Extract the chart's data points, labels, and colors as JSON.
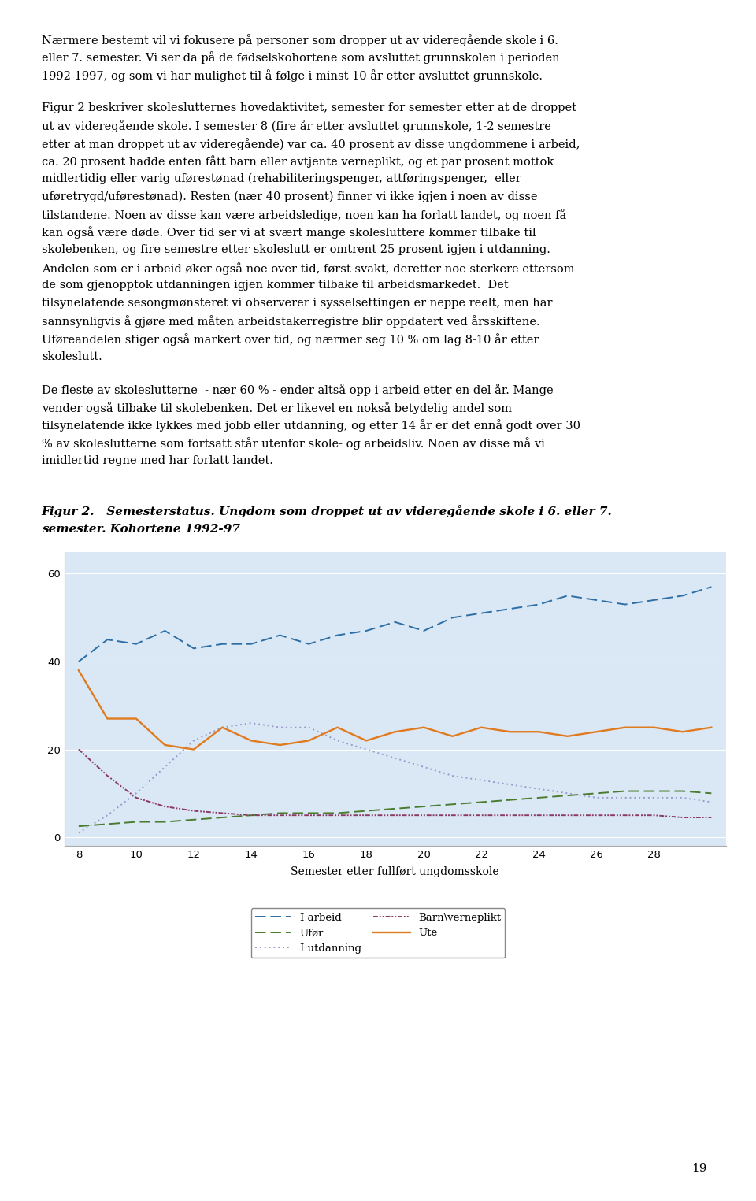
{
  "xlabel": "Semester etter fullført ungdomsskole",
  "xlim": [
    7.5,
    30.5
  ],
  "ylim": [
    -2,
    65
  ],
  "yticks": [
    0,
    20,
    40,
    60
  ],
  "xticks": [
    8,
    10,
    12,
    14,
    16,
    18,
    20,
    22,
    24,
    26,
    28
  ],
  "plot_bg_color": "#dae8f5",
  "x": [
    8,
    9,
    10,
    11,
    12,
    13,
    14,
    15,
    16,
    17,
    18,
    19,
    20,
    21,
    22,
    23,
    24,
    25,
    26,
    27,
    28,
    29,
    30
  ],
  "i_arbeid": [
    40,
    45,
    44,
    47,
    43,
    44,
    44,
    46,
    44,
    46,
    47,
    49,
    47,
    50,
    51,
    52,
    53,
    55,
    54,
    53,
    54,
    55,
    57
  ],
  "ufor": [
    2.5,
    3,
    3.5,
    3.5,
    4,
    4.5,
    5,
    5.5,
    5.5,
    5.5,
    6,
    6.5,
    7,
    7.5,
    8,
    8.5,
    9,
    9.5,
    10,
    10.5,
    10.5,
    10.5,
    10
  ],
  "i_utdanning": [
    1,
    5,
    10,
    16,
    22,
    25,
    26,
    25,
    25,
    22,
    20,
    18,
    16,
    14,
    13,
    12,
    11,
    10,
    9,
    9,
    9,
    9,
    8
  ],
  "barn_verneplikt": [
    20,
    14,
    9,
    7,
    6,
    5.5,
    5,
    5,
    5,
    5,
    5,
    5,
    5,
    5,
    5,
    5,
    5,
    5,
    5,
    5,
    5,
    4.5,
    4.5
  ],
  "ute": [
    38,
    27,
    27,
    21,
    20,
    25,
    22,
    21,
    22,
    25,
    22,
    24,
    25,
    23,
    25,
    24,
    24,
    23,
    24,
    25,
    25,
    24,
    25
  ],
  "color_arbeid": "#2c6ea5",
  "color_ufor": "#4a7c2f",
  "color_utdanning": "#9999cc",
  "color_barn": "#8b3a62",
  "color_ute": "#e07b20",
  "fig_title1": "Figur 2.   Semesterstatus. Ungdom som droppet ut av videregående skole i 6. eller 7.",
  "fig_title2": "semester. Kohortene 1992-97",
  "para1_lines": [
    "Nærmere bestemt vil vi fokusere på personer som dropper ut av videregående skole i 6.",
    "eller 7. semester. Vi ser da på de fødselskohortene som avsluttet grunnskolen i perioden",
    "1992-1997, og som vi har mulighet til å følge i minst 10 år etter avsluttet grunnskole."
  ],
  "para2_lines": [
    "Figur 2 beskriver skoleslutternes hovedaktivitet, semester for semester etter at de droppet",
    "ut av videregående skole. I semester 8 (fire år etter avsluttet grunnskole, 1-2 semestre",
    "etter at man droppet ut av videregående) var ca. 40 prosent av disse ungdommene i arbeid,",
    "ca. 20 prosent hadde enten fått barn eller avtjente verneplikt, og et par prosent mottok",
    "midlertidig eller varig uførestønad (rehabiliteringspenger, attføringspenger,  eller",
    "uføretrygd/uførestønad). Resten (nær 40 prosent) finner vi ikke igjen i noen av disse",
    "tilstandene. Noen av disse kan være arbeidsledige, noen kan ha forlatt landet, og noen få",
    "kan også være døde. Over tid ser vi at svært mange skolesluttere kommer tilbake til",
    "skolebenken, og fire semestre etter skoleslutt er omtrent 25 prosent igjen i utdanning.",
    "Andelen som er i arbeid øker også noe over tid, først svakt, deretter noe sterkere ettersom",
    "de som gjenopptok utdanningen igjen kommer tilbake til arbeidsmarkedet.  Det",
    "tilsynelatende sesongmønsteret vi observerer i sysselsettingen er neppe reelt, men har",
    "sannsynligvis å gjøre med måten arbeidstakerregistre blir oppdatert ved årsskiftene.",
    "Uføreandelen stiger også markert over tid, og nærmer seg 10 % om lag 8-10 år etter",
    "skoleslutt."
  ],
  "para3_lines": [
    "De fleste av skoleslutterne  - nær 60 % - ender altså opp i arbeid etter en del år. Mange",
    "vender også tilbake til skolebenken. Det er likevel en nokså betydelig andel som",
    "tilsynelatende ikke lykkes med jobb eller utdanning, og etter 14 år er det ennå godt over 30",
    "% av skoleslutterne som fortsatt står utenfor skole- og arbeidsliv. Noen av disse må vi",
    "imidlertid regne med har forlatt landet."
  ],
  "page_number": "19"
}
